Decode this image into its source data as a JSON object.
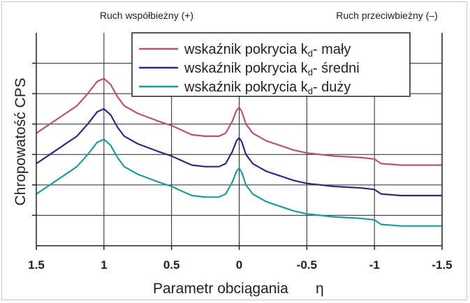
{
  "chart_data": {
    "type": "line",
    "xlabel": "Parametr obciągania",
    "xlabel_symbol": "η",
    "ylabel": "Chropowatość CPS",
    "top_labels": {
      "left": "Ruch współbieżny (+)",
      "right": "Ruch przeciwbieżny (–)"
    },
    "xlim": [
      1.5,
      -1.5
    ],
    "x_reversed": true,
    "x_ticks": [
      1.5,
      1,
      0.5,
      0,
      -0.5,
      -1,
      -1.5
    ],
    "x_tick_labels": [
      "1.5",
      "1",
      "0.5",
      "0",
      "-0.5",
      "-1",
      "-1.5"
    ],
    "ylim": [
      0,
      7
    ],
    "y_ticks_shown": false,
    "grid": true,
    "legend_position": "top-right",
    "series": [
      {
        "name": "wskaźnik pokrycia kd- mały",
        "legend_prefix": "wskaźnik pokrycia k",
        "legend_sub": "d",
        "legend_suffix": "- mały",
        "color": "#b5527a",
        "x": [
          1.5,
          1.4,
          1.3,
          1.2,
          1.12,
          1.05,
          1.0,
          0.95,
          0.9,
          0.85,
          0.75,
          0.6,
          0.5,
          0.4,
          0.35,
          0.25,
          0.15,
          0.1,
          0.05,
          0.02,
          0.0,
          -0.02,
          -0.05,
          -0.1,
          -0.2,
          -0.3,
          -0.4,
          -0.5,
          -0.7,
          -0.9,
          -1.0,
          -1.05,
          -1.2,
          -1.5
        ],
        "y": [
          3.7,
          4.0,
          4.3,
          4.6,
          5.0,
          5.4,
          5.5,
          5.3,
          4.9,
          4.6,
          4.35,
          4.1,
          3.95,
          3.75,
          3.65,
          3.6,
          3.6,
          3.7,
          4.1,
          4.45,
          4.55,
          4.4,
          4.0,
          3.7,
          3.45,
          3.3,
          3.15,
          3.05,
          2.95,
          2.9,
          2.85,
          2.7,
          2.65,
          2.65
        ]
      },
      {
        "name": "wskaźnik pokrycia kd- średni",
        "legend_prefix": "wskaźnik pokrycia k",
        "legend_sub": "d",
        "legend_suffix": "- średni",
        "color": "#2e2a7a",
        "x": [
          1.5,
          1.4,
          1.3,
          1.2,
          1.12,
          1.05,
          1.0,
          0.95,
          0.9,
          0.85,
          0.75,
          0.6,
          0.5,
          0.4,
          0.35,
          0.25,
          0.15,
          0.1,
          0.05,
          0.02,
          0.0,
          -0.02,
          -0.05,
          -0.1,
          -0.2,
          -0.3,
          -0.4,
          -0.5,
          -0.7,
          -0.9,
          -1.0,
          -1.05,
          -1.2,
          -1.5
        ],
        "y": [
          2.7,
          3.0,
          3.3,
          3.6,
          4.0,
          4.4,
          4.5,
          4.3,
          3.9,
          3.6,
          3.35,
          3.1,
          2.95,
          2.75,
          2.65,
          2.6,
          2.6,
          2.7,
          3.1,
          3.45,
          3.55,
          3.4,
          3.0,
          2.7,
          2.45,
          2.3,
          2.15,
          2.05,
          1.95,
          1.9,
          1.85,
          1.7,
          1.65,
          1.65
        ]
      },
      {
        "name": "wskaźnik pokrycia kd- duży",
        "legend_prefix": "wskaźnik pokrycia k",
        "legend_sub": "d",
        "legend_suffix": "- duży",
        "color": "#1f9a9a",
        "x": [
          1.5,
          1.4,
          1.3,
          1.2,
          1.12,
          1.05,
          1.0,
          0.95,
          0.9,
          0.85,
          0.75,
          0.6,
          0.5,
          0.4,
          0.35,
          0.25,
          0.15,
          0.1,
          0.05,
          0.02,
          0.0,
          -0.02,
          -0.05,
          -0.1,
          -0.2,
          -0.3,
          -0.4,
          -0.5,
          -0.7,
          -0.9,
          -1.0,
          -1.05,
          -1.2,
          -1.5
        ],
        "y": [
          1.7,
          2.0,
          2.3,
          2.6,
          3.0,
          3.4,
          3.5,
          3.3,
          2.9,
          2.6,
          2.35,
          2.1,
          1.95,
          1.75,
          1.65,
          1.6,
          1.6,
          1.7,
          2.1,
          2.45,
          2.55,
          2.4,
          2.0,
          1.7,
          1.45,
          1.3,
          1.15,
          1.05,
          0.95,
          0.9,
          0.85,
          0.7,
          0.65,
          0.65
        ]
      }
    ]
  }
}
